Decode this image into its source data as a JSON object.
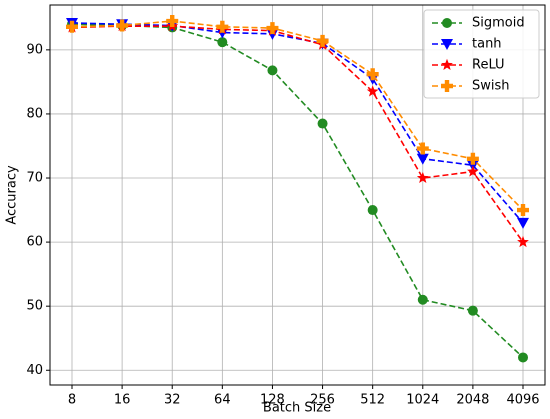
{
  "chart_data": {
    "type": "line",
    "x_label": "Batch Size",
    "y_label": "Accuracy",
    "categories": [
      "8",
      "16",
      "32",
      "64",
      "128",
      "256",
      "512",
      "1024",
      "2048",
      "4096"
    ],
    "ylim": [
      37.7,
      97
    ],
    "yticks": [
      40,
      50,
      60,
      70,
      80,
      90
    ],
    "grid": true,
    "legend": "upper right",
    "series": [
      {
        "name": "Sigmoid",
        "color": "#228b22",
        "marker": "circle",
        "values": [
          94.0,
          93.8,
          93.5,
          91.2,
          86.8,
          78.5,
          65.0,
          51.0,
          49.3,
          42.0
        ]
      },
      {
        "name": "tanh",
        "color": "#0000ff",
        "marker": "triangle-down",
        "values": [
          94.2,
          94.0,
          93.8,
          92.7,
          92.5,
          91.0,
          85.5,
          73.0,
          72.0,
          63.0
        ]
      },
      {
        "name": "ReLU",
        "color": "#ff0000",
        "marker": "star",
        "values": [
          93.5,
          93.7,
          93.7,
          93.2,
          93.0,
          90.8,
          83.5,
          70.0,
          71.0,
          60.0
        ]
      },
      {
        "name": "Swish",
        "color": "#ff8c00",
        "marker": "plus",
        "values": [
          93.6,
          93.8,
          94.5,
          93.6,
          93.4,
          91.4,
          86.2,
          74.6,
          73.0,
          65.0
        ]
      }
    ]
  }
}
